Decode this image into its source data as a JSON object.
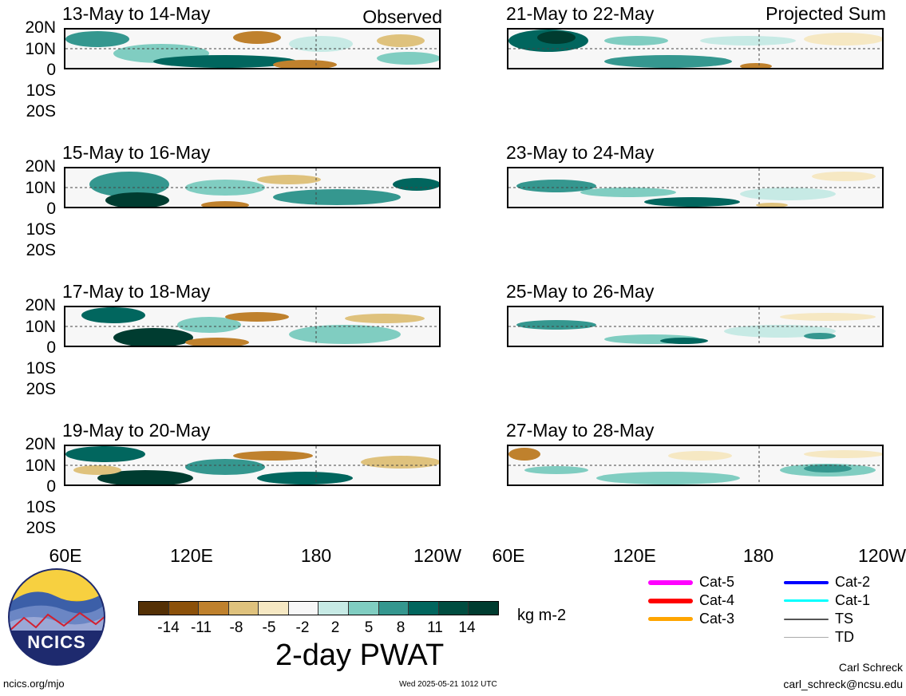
{
  "header": {
    "observed": "Observed",
    "projected": "Projected Sum"
  },
  "left_panels": [
    {
      "title": "13-May to 14-May"
    },
    {
      "title": "15-May to 16-May"
    },
    {
      "title": "17-May to 18-May"
    },
    {
      "title": "19-May to 20-May"
    }
  ],
  "right_panels": [
    {
      "title": "21-May to 22-May"
    },
    {
      "title": "23-May to 24-May"
    },
    {
      "title": "25-May to 26-May"
    },
    {
      "title": "27-May to 28-May"
    }
  ],
  "y_labels": [
    "20N",
    "10N",
    "0",
    "10S",
    "20S"
  ],
  "x_labels": [
    "60E",
    "120E",
    "180",
    "120W"
  ],
  "colorbar": {
    "colors": [
      "#543005",
      "#8c510a",
      "#bf812d",
      "#dfc27d",
      "#f6e8c3",
      "#f7f7f7",
      "#c7eae5",
      "#80cdc1",
      "#35978f",
      "#01665e",
      "#004d40",
      "#003c30"
    ],
    "tick_labels": [
      "-14",
      "-11",
      "-8",
      "-5",
      "-2",
      "2",
      "5",
      "8",
      "11",
      "14"
    ],
    "units": "kg m-2",
    "title": "2-day PWAT"
  },
  "legend": [
    {
      "label": "Cat-5",
      "color": "#ff00ff"
    },
    {
      "label": "Cat-4",
      "color": "#ff0000"
    },
    {
      "label": "Cat-3",
      "color": "#ffa500"
    },
    {
      "label": "Cat-2",
      "color": "#0000ff"
    },
    {
      "label": "Cat-1",
      "color": "#00ffff"
    },
    {
      "label": "TS",
      "color": "#555555"
    },
    {
      "label": "TD",
      "color": "#aaaaaa"
    }
  ],
  "logo": {
    "text": "NCICS"
  },
  "footer": {
    "left": "ncics.org/mjo",
    "center": "Wed 2025-05-21 1012 UTC",
    "author": "Carl Schreck",
    "email": "carl_schreck@ncsu.edu"
  }
}
